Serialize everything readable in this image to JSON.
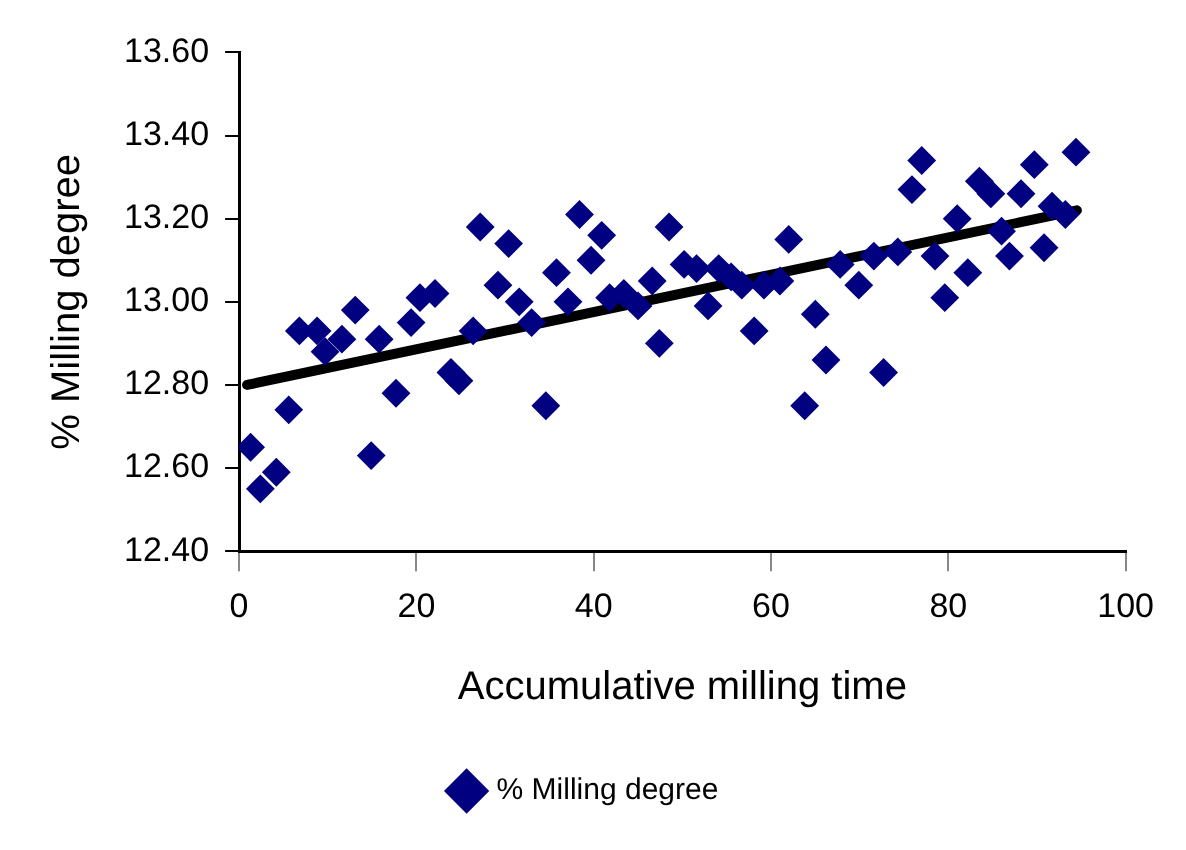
{
  "chart_data": {
    "type": "scatter",
    "xlabel": "Accumulative milling time",
    "ylabel": "% Milling degree",
    "xlim": [
      0,
      100
    ],
    "xticks": [
      0,
      20,
      40,
      60,
      80,
      100
    ],
    "ylim": [
      12.4,
      13.6
    ],
    "yticks": [
      {
        "value": 12.4,
        "label": "12.40"
      },
      {
        "value": 12.6,
        "label": "12.60"
      },
      {
        "value": 12.8,
        "label": "12.80"
      },
      {
        "value": 13,
        "label": "13.00"
      },
      {
        "value": 13.2,
        "label": "13.20"
      },
      {
        "value": 13.4,
        "label": "13.40"
      },
      {
        "value": 13.6,
        "label": "13.60"
      }
    ],
    "grid": false,
    "legend": "bottom",
    "marker": "diamond",
    "series": [
      {
        "name": "% Milling degree",
        "color": "#000080",
        "x": [
          1.3,
          2.4,
          4.2,
          5.6,
          6.8,
          8.8,
          9.7,
          11.6,
          13.1,
          14.9,
          15.8,
          17.7,
          19.4,
          20.4,
          22.1,
          23.9,
          24.8,
          26.4,
          27.2,
          29.2,
          30.4,
          31.6,
          33.0,
          34.6,
          35.8,
          37.1,
          38.4,
          39.7,
          40.9,
          41.8,
          43.4,
          45.0,
          46.6,
          47.4,
          48.5,
          50.2,
          51.6,
          52.9,
          54.1,
          55.5,
          56.7,
          58.1,
          59.2,
          61.0,
          62.0,
          63.8,
          65.0,
          66.2,
          67.8,
          69.9,
          71.6,
          72.7,
          74.3,
          75.9,
          77.0,
          78.5,
          79.6,
          81.0,
          82.2,
          83.5,
          84.8,
          86.0,
          86.9,
          88.2,
          89.7,
          90.8,
          91.7,
          93.2,
          94.4
        ],
        "values": [
          12.65,
          12.55,
          12.59,
          12.74,
          12.93,
          12.93,
          12.88,
          12.91,
          12.98,
          12.63,
          12.91,
          12.78,
          12.95,
          13.01,
          13.02,
          12.83,
          12.81,
          12.93,
          13.18,
          13.04,
          13.14,
          13.0,
          12.95,
          12.75,
          13.07,
          13.0,
          13.21,
          13.1,
          13.16,
          13.01,
          13.02,
          12.99,
          13.05,
          12.9,
          13.18,
          13.09,
          13.08,
          12.99,
          13.08,
          13.06,
          13.04,
          12.93,
          13.04,
          13.05,
          13.15,
          12.75,
          12.97,
          12.86,
          13.09,
          13.04,
          13.11,
          12.83,
          13.12,
          13.27,
          13.34,
          13.11,
          13.01,
          13.2,
          13.07,
          13.29,
          13.26,
          13.17,
          13.11,
          13.26,
          13.33,
          13.13,
          13.23,
          13.21,
          13.36
        ]
      },
      {
        "type": "line",
        "color": "#000000",
        "marker": "none",
        "x": [
          0.9,
          94.5
        ],
        "values": [
          12.8,
          13.22
        ]
      }
    ]
  }
}
